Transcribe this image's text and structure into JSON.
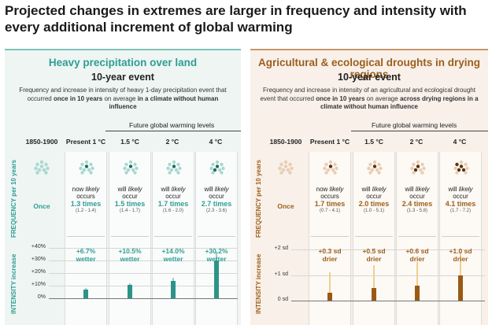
{
  "title": "Projected changes in extremes are larger in frequency and intensity with every additional increment of global warming",
  "colors": {
    "heavy": "#2e9e93",
    "drought": "#9c5f1c"
  },
  "heavy": {
    "title": "Heavy precipitation over land",
    "subtitle": "10-year event",
    "desc_a": "Frequency and increase in intensity of heavy 1-day precipitation event that occurred ",
    "desc_b": "once in 10 years",
    "desc_c": " on average ",
    "desc_d": "in a climate without human influence",
    "future_label": "Future global warming levels",
    "freq_axis": "FREQUENCY per 10 years",
    "int_axis": "INTENSITY increase",
    "columns": [
      "1850-1900",
      "Present 1 °C",
      "1.5 °C",
      "2 °C",
      "4 °C"
    ],
    "once": "Once",
    "freq": [
      {
        "pre": "now",
        "mid": " likely",
        "post": " occurs",
        "value": "1.3 times",
        "range": "(1.2 - 1.4)"
      },
      {
        "pre": "will",
        "mid": " likely",
        "post": " occur",
        "value": "1.5 times",
        "range": "(1.4 - 1.7)"
      },
      {
        "pre": "will",
        "mid": " likely",
        "post": " occur",
        "value": "1.7 times",
        "range": "(1.6 - 2.0)"
      },
      {
        "pre": "will",
        "mid": " likely",
        "post": " occur",
        "value": "2.7 times",
        "range": "(2.3 - 3.6)"
      }
    ],
    "ticks": [
      "+40%",
      "+30%",
      "+20%",
      "+10%",
      "0%"
    ],
    "intensity": [
      {
        "l1": "+6.7%",
        "l2": "wetter"
      },
      {
        "l1": "+10.5%",
        "l2": "wetter"
      },
      {
        "l1": "+14.0%",
        "l2": "wetter"
      },
      {
        "l1": "+30.2%",
        "l2": "wetter"
      }
    ],
    "intensity_values": [
      6.7,
      10.5,
      14.0,
      30.2
    ],
    "intensity_low": [
      5,
      8,
      11,
      24
    ],
    "intensity_high": [
      8,
      12,
      16,
      37
    ],
    "scale_max": 40
  },
  "drought": {
    "title": "Agricultural & ecological droughts in drying regions",
    "subtitle": "10-year event",
    "desc_a": "Frequency and increase in intensity of an agricultural and ecological drought event that occurred ",
    "desc_b": "once in 10 years",
    "desc_c": " on average ",
    "desc_d": "across drying regions in a climate without human influence",
    "future_label": "Future global warming levels",
    "freq_axis": "FREQUENCY per 10 years",
    "int_axis": "INTENSITY increase",
    "columns": [
      "1850-1900",
      "Present 1 °C",
      "1.5 °C",
      "2 °C",
      "4 °C"
    ],
    "once": "Once",
    "freq": [
      {
        "pre": "now",
        "mid": " likely",
        "post": " occurs",
        "value": "1.7 times",
        "range": "(0.7 - 4.1)"
      },
      {
        "pre": "will",
        "mid": " likely",
        "post": " occur",
        "value": "2.0 times",
        "range": "(1.0 - 5.1)"
      },
      {
        "pre": "will",
        "mid": " likely",
        "post": " occur",
        "value": "2.4 times",
        "range": "(1.3 - 5.8)"
      },
      {
        "pre": "will",
        "mid": " likely",
        "post": " occur",
        "value": "4.1 times",
        "range": "(1.7 - 7.2)"
      }
    ],
    "ticks": [
      "+2 sd",
      "+1 sd",
      "0 sd"
    ],
    "intensity": [
      {
        "l1": "+0.3 sd",
        "l2": "drier"
      },
      {
        "l1": "+0.5 sd",
        "l2": "drier"
      },
      {
        "l1": "+0.6 sd",
        "l2": "drier"
      },
      {
        "l1": "+1.0 sd",
        "l2": "drier"
      }
    ],
    "intensity_values": [
      0.3,
      0.5,
      0.6,
      1.0
    ],
    "intensity_low": [
      0.0,
      0.0,
      0.0,
      0.0
    ],
    "intensity_high": [
      1.1,
      1.4,
      1.5,
      1.9
    ],
    "scale_max": 2
  }
}
